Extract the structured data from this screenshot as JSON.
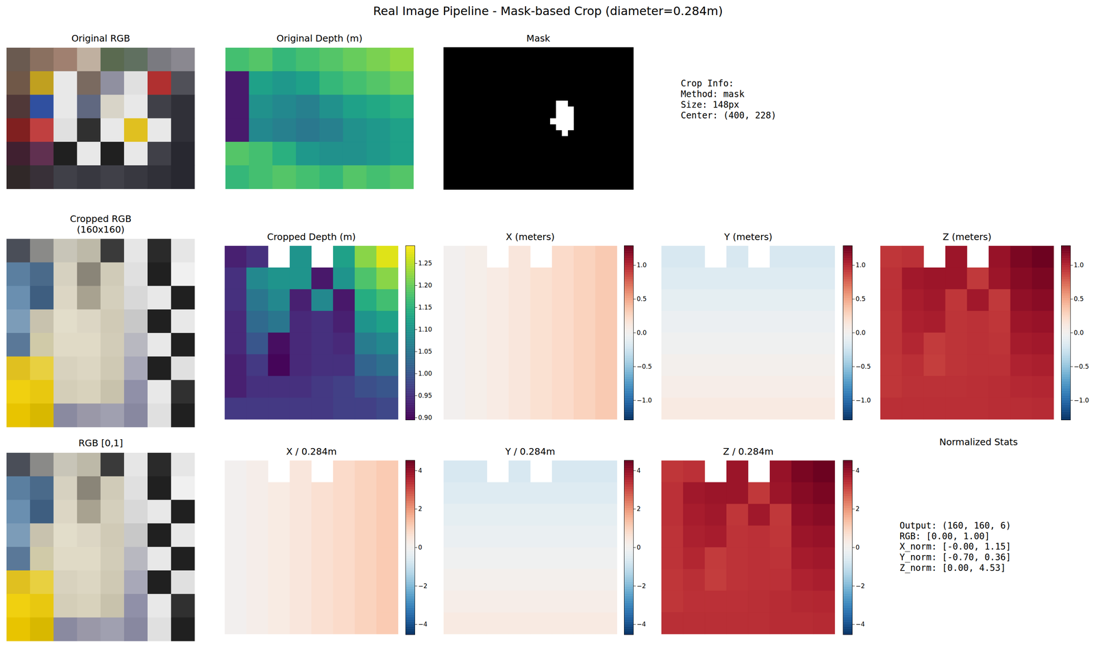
{
  "title": "Real Image Pipeline - Mask-based Crop (diameter=0.284m)",
  "chart_data": [
    {
      "type": "image",
      "title": "Original RGB",
      "pixels": [
        [
          "#6a5a50",
          "#8a7060",
          "#a08070",
          "#c0b0a0",
          "#5a6a50",
          "#607060",
          "#7a7a80",
          "#8a8890"
        ],
        [
          "#705848",
          "#c0a020",
          "#e8e8e8",
          "#7a6a60",
          "#9090a0",
          "#e0e0e0",
          "#b03030",
          "#505058"
        ],
        [
          "#503838",
          "#3050a0",
          "#e8e8e8",
          "#606880",
          "#d8d4c8",
          "#e8e8e8",
          "#404048",
          "#303038"
        ],
        [
          "#802020",
          "#c04040",
          "#e0e0e0",
          "#303030",
          "#e8e8e8",
          "#e0c020",
          "#e8e8e8",
          "#303038"
        ],
        [
          "#402030",
          "#603050",
          "#202020",
          "#e8e8e8",
          "#202020",
          "#e8e8e8",
          "#404048",
          "#282830"
        ],
        [
          "#302828",
          "#383038",
          "#404048",
          "#383840",
          "#404048",
          "#383840",
          "#303038",
          "#282830"
        ]
      ]
    },
    {
      "type": "heatmap",
      "title": "Original Depth (m)",
      "color": "viridis",
      "color_range": [
        0.5,
        2.0
      ],
      "cells": [
        [
          1.55,
          1.6,
          1.5,
          1.55,
          1.6,
          1.65,
          1.7,
          1.75
        ],
        [
          0.6,
          1.35,
          1.3,
          1.35,
          1.5,
          1.55,
          1.6,
          1.65
        ],
        [
          0.6,
          1.25,
          1.2,
          1.15,
          1.25,
          1.35,
          1.4,
          1.45
        ],
        [
          0.6,
          1.2,
          1.15,
          1.1,
          1.15,
          1.25,
          1.3,
          1.35
        ],
        [
          1.6,
          1.55,
          1.45,
          1.3,
          1.25,
          1.25,
          1.3,
          1.35
        ],
        [
          1.5,
          1.55,
          1.6,
          1.55,
          1.5,
          1.6,
          1.55,
          1.6
        ]
      ]
    },
    {
      "type": "mask",
      "title": "Mask",
      "rows": 24,
      "cols": 32,
      "white_cells": [
        [
          9,
          19
        ],
        [
          9,
          20
        ],
        [
          10,
          19
        ],
        [
          10,
          20
        ],
        [
          10,
          21
        ],
        [
          11,
          19
        ],
        [
          11,
          20
        ],
        [
          11,
          21
        ],
        [
          12,
          18
        ],
        [
          12,
          19
        ],
        [
          12,
          20
        ],
        [
          12,
          21
        ],
        [
          13,
          19
        ],
        [
          13,
          20
        ],
        [
          13,
          21
        ],
        [
          14,
          20
        ]
      ]
    },
    {
      "type": "image",
      "title": "Cropped RGB\n(160x160)",
      "pixels": [
        [
          "#4a4e58",
          "#8a8a88",
          "#c8c5b8",
          "#bdb9a8",
          "#3a3a3a",
          "#e6e6e6",
          "#2a2a2a",
          "#e6e6e6"
        ],
        [
          "#5b7fa0",
          "#4a6a8a",
          "#d6d1c0",
          "#8a8578",
          "#d0cbb8",
          "#e0e0e0",
          "#202020",
          "#f0f0f0"
        ],
        [
          "#6a8fb0",
          "#3e5e80",
          "#dcd6c4",
          "#a8a290",
          "#d4cfbc",
          "#d8d8d8",
          "#e8e8e8",
          "#202020"
        ],
        [
          "#7c9cb8",
          "#c8c2ae",
          "#e2ddca",
          "#dcd6c4",
          "#d0cab6",
          "#c8c8c8",
          "#202020",
          "#e8e8e8"
        ],
        [
          "#5a7898",
          "#d0caa8",
          "#e0dac6",
          "#e0dac6",
          "#d2ccb8",
          "#b8b8c0",
          "#e8e8e8",
          "#202020"
        ],
        [
          "#e0c020",
          "#e8d040",
          "#d8d2be",
          "#dcd6c2",
          "#cfc9b4",
          "#a8a8b8",
          "#202020",
          "#e0e0e0"
        ],
        [
          "#f0d010",
          "#e8c810",
          "#d4ceb8",
          "#d8d2bc",
          "#c8c2ac",
          "#9090a8",
          "#e8e8e8",
          "#303030"
        ],
        [
          "#e8c400",
          "#d8b800",
          "#8a8aa0",
          "#9a98a8",
          "#a0a0b0",
          "#8888a0",
          "#e0e0e0",
          "#202020"
        ]
      ]
    },
    {
      "type": "heatmap",
      "title": "Cropped Depth (m)",
      "color": "viridis",
      "colorbar": {
        "range": [
          0.895,
          1.29
        ],
        "ticks": [
          {
            "value": 0.9,
            "label": "0.90"
          },
          {
            "value": 0.95,
            "label": "0.95"
          },
          {
            "value": 1.0,
            "label": "1.00"
          },
          {
            "value": 1.05,
            "label": "1.05"
          },
          {
            "value": 1.1,
            "label": "1.10"
          },
          {
            "value": 1.15,
            "label": "1.15"
          },
          {
            "value": 1.2,
            "label": "1.20"
          },
          {
            "value": 1.25,
            "label": "1.25"
          }
        ]
      },
      "cells": [
        [
          0.93,
          0.95,
          null,
          1.1,
          null,
          1.12,
          1.22,
          1.27
        ],
        [
          0.95,
          1.08,
          1.1,
          1.1,
          0.92,
          1.1,
          1.18,
          1.22
        ],
        [
          0.95,
          1.05,
          1.08,
          0.93,
          1.08,
          0.92,
          1.14,
          1.17
        ],
        [
          0.94,
          1.03,
          1.05,
          0.94,
          0.95,
          0.93,
          1.1,
          1.12
        ],
        [
          0.94,
          1.0,
          0.91,
          0.94,
          0.95,
          0.94,
          1.06,
          1.08
        ],
        [
          0.93,
          0.96,
          0.9,
          0.94,
          0.95,
          0.95,
          1.02,
          1.04
        ],
        [
          0.93,
          0.95,
          0.95,
          0.95,
          0.96,
          0.97,
          0.99,
          1.0
        ],
        [
          0.96,
          0.96,
          0.96,
          0.96,
          0.96,
          0.97,
          0.97,
          0.98
        ]
      ]
    },
    {
      "type": "heatmap",
      "title": "X (meters)",
      "color": "RdBu_r",
      "colorbar": {
        "range": [
          -1.29,
          1.29
        ],
        "ticks": [
          {
            "value": -1,
            "label": "−1.0"
          },
          {
            "value": -0.5,
            "label": "−0.5"
          },
          {
            "value": 0,
            "label": "0.0"
          },
          {
            "value": 0.5,
            "label": "0.5"
          },
          {
            "value": 1,
            "label": "1.0"
          }
        ]
      },
      "cells": [
        [
          0.0,
          0.05,
          null,
          0.14,
          null,
          0.23,
          0.28,
          0.33
        ],
        [
          0.0,
          0.05,
          0.09,
          0.14,
          0.19,
          0.23,
          0.28,
          0.33
        ],
        [
          0.0,
          0.05,
          0.09,
          0.14,
          0.19,
          0.23,
          0.28,
          0.33
        ],
        [
          0.0,
          0.05,
          0.09,
          0.14,
          0.19,
          0.23,
          0.28,
          0.33
        ],
        [
          0.0,
          0.05,
          0.09,
          0.14,
          0.19,
          0.23,
          0.28,
          0.33
        ],
        [
          0.0,
          0.05,
          0.09,
          0.14,
          0.19,
          0.23,
          0.28,
          0.33
        ],
        [
          0.0,
          0.05,
          0.09,
          0.14,
          0.19,
          0.23,
          0.28,
          0.33
        ],
        [
          0.0,
          0.05,
          0.09,
          0.14,
          0.19,
          0.23,
          0.28,
          0.33
        ]
      ]
    },
    {
      "type": "heatmap",
      "title": "Y (meters)",
      "color": "RdBu_r",
      "colorbar": {
        "range": [
          -1.29,
          1.29
        ],
        "ticks": [
          {
            "value": -1,
            "label": "−1.0"
          },
          {
            "value": -0.5,
            "label": "−0.5"
          },
          {
            "value": 0,
            "label": "0.0"
          },
          {
            "value": 0.5,
            "label": "0.5"
          },
          {
            "value": 1,
            "label": "1.0"
          }
        ]
      },
      "cells": [
        [
          -0.2,
          -0.2,
          null,
          -0.2,
          null,
          -0.2,
          -0.2,
          -0.2
        ],
        [
          -0.16,
          -0.16,
          -0.16,
          -0.16,
          -0.16,
          -0.16,
          -0.16,
          -0.16
        ],
        [
          -0.11,
          -0.11,
          -0.11,
          -0.11,
          -0.11,
          -0.11,
          -0.11,
          -0.11
        ],
        [
          -0.07,
          -0.07,
          -0.07,
          -0.07,
          -0.07,
          -0.07,
          -0.07,
          -0.07
        ],
        [
          -0.03,
          -0.03,
          -0.03,
          -0.03,
          -0.03,
          -0.03,
          -0.03,
          -0.03
        ],
        [
          0.02,
          0.02,
          0.02,
          0.02,
          0.02,
          0.02,
          0.02,
          0.02
        ],
        [
          0.06,
          0.06,
          0.06,
          0.06,
          0.06,
          0.06,
          0.06,
          0.06
        ],
        [
          0.1,
          0.1,
          0.1,
          0.1,
          0.1,
          0.1,
          0.1,
          0.1
        ]
      ]
    },
    {
      "type": "heatmap",
      "title": "Z (meters)",
      "color": "RdBu_r",
      "colorbar": {
        "range": [
          -1.29,
          1.29
        ],
        "ticks": [
          {
            "value": -1,
            "label": "−1.0"
          },
          {
            "value": -0.5,
            "label": "−0.5"
          },
          {
            "value": 0,
            "label": "0.0"
          },
          {
            "value": 0.5,
            "label": "0.5"
          },
          {
            "value": 1,
            "label": "1.0"
          }
        ]
      },
      "cells": [
        [
          0.93,
          0.95,
          null,
          1.1,
          null,
          1.12,
          1.22,
          1.27
        ],
        [
          0.95,
          1.08,
          1.1,
          1.1,
          0.92,
          1.1,
          1.18,
          1.22
        ],
        [
          0.95,
          1.05,
          1.08,
          0.93,
          1.08,
          0.92,
          1.14,
          1.17
        ],
        [
          0.94,
          1.03,
          1.05,
          0.94,
          0.95,
          0.93,
          1.1,
          1.12
        ],
        [
          0.94,
          1.0,
          0.91,
          0.94,
          0.95,
          0.94,
          1.06,
          1.08
        ],
        [
          0.93,
          0.96,
          0.9,
          0.94,
          0.95,
          0.95,
          1.02,
          1.04
        ],
        [
          0.93,
          0.95,
          0.95,
          0.95,
          0.96,
          0.97,
          0.99,
          1.0
        ],
        [
          0.96,
          0.96,
          0.96,
          0.96,
          0.96,
          0.97,
          0.97,
          0.98
        ]
      ]
    },
    {
      "type": "image",
      "title": "RGB [0,1]",
      "pixels": [
        [
          "#4a4e58",
          "#8a8a88",
          "#c8c5b8",
          "#bdb9a8",
          "#3a3a3a",
          "#e6e6e6",
          "#2a2a2a",
          "#e6e6e6"
        ],
        [
          "#5b7fa0",
          "#4a6a8a",
          "#d6d1c0",
          "#8a8578",
          "#d0cbb8",
          "#e0e0e0",
          "#202020",
          "#f0f0f0"
        ],
        [
          "#6a8fb0",
          "#3e5e80",
          "#dcd6c4",
          "#a8a290",
          "#d4cfbc",
          "#d8d8d8",
          "#e8e8e8",
          "#202020"
        ],
        [
          "#7c9cb8",
          "#c8c2ae",
          "#e2ddca",
          "#dcd6c4",
          "#d0cab6",
          "#c8c8c8",
          "#202020",
          "#e8e8e8"
        ],
        [
          "#5a7898",
          "#d0caa8",
          "#e0dac6",
          "#e0dac6",
          "#d2ccb8",
          "#b8b8c0",
          "#e8e8e8",
          "#202020"
        ],
        [
          "#e0c020",
          "#e8d040",
          "#d8d2be",
          "#dcd6c2",
          "#cfc9b4",
          "#a8a8b8",
          "#202020",
          "#e0e0e0"
        ],
        [
          "#f0d010",
          "#e8c810",
          "#d4ceb8",
          "#d8d2bc",
          "#c8c2ac",
          "#9090a8",
          "#e8e8e8",
          "#303030"
        ],
        [
          "#e8c400",
          "#d8b800",
          "#8a8aa0",
          "#9a98a8",
          "#a0a0b0",
          "#8888a0",
          "#e0e0e0",
          "#202020"
        ]
      ]
    },
    {
      "type": "heatmap",
      "title": "X / 0.284m",
      "color": "RdBu_r",
      "colorbar": {
        "range": [
          -4.53,
          4.53
        ],
        "ticks": [
          {
            "value": -4,
            "label": "−4"
          },
          {
            "value": -2,
            "label": "−2"
          },
          0,
          2,
          4
        ]
      },
      "cells": [
        [
          0.0,
          0.18,
          null,
          0.49,
          null,
          0.81,
          0.99,
          1.15
        ],
        [
          0.0,
          0.18,
          0.32,
          0.49,
          0.67,
          0.81,
          0.99,
          1.15
        ],
        [
          0.0,
          0.18,
          0.32,
          0.49,
          0.67,
          0.81,
          0.99,
          1.15
        ],
        [
          0.0,
          0.18,
          0.32,
          0.49,
          0.67,
          0.81,
          0.99,
          1.15
        ],
        [
          0.0,
          0.18,
          0.32,
          0.49,
          0.67,
          0.81,
          0.99,
          1.15
        ],
        [
          0.0,
          0.18,
          0.32,
          0.49,
          0.67,
          0.81,
          0.99,
          1.15
        ],
        [
          0.0,
          0.18,
          0.32,
          0.49,
          0.67,
          0.81,
          0.99,
          1.15
        ],
        [
          0.0,
          0.18,
          0.32,
          0.49,
          0.67,
          0.81,
          0.99,
          1.15
        ]
      ]
    },
    {
      "type": "heatmap",
      "title": "Y / 0.284m",
      "color": "RdBu_r",
      "colorbar": {
        "range": [
          -4.53,
          4.53
        ],
        "ticks": [
          {
            "value": -4,
            "label": "−4"
          },
          {
            "value": -2,
            "label": "−2"
          },
          0,
          2,
          4
        ]
      },
      "cells": [
        [
          -0.7,
          -0.7,
          null,
          -0.7,
          null,
          -0.7,
          -0.7,
          -0.7
        ],
        [
          -0.56,
          -0.56,
          -0.56,
          -0.56,
          -0.56,
          -0.56,
          -0.56,
          -0.56
        ],
        [
          -0.39,
          -0.39,
          -0.39,
          -0.39,
          -0.39,
          -0.39,
          -0.39,
          -0.39
        ],
        [
          -0.25,
          -0.25,
          -0.25,
          -0.25,
          -0.25,
          -0.25,
          -0.25,
          -0.25
        ],
        [
          -0.11,
          -0.11,
          -0.11,
          -0.11,
          -0.11,
          -0.11,
          -0.11,
          -0.11
        ],
        [
          0.07,
          0.07,
          0.07,
          0.07,
          0.07,
          0.07,
          0.07,
          0.07
        ],
        [
          0.21,
          0.21,
          0.21,
          0.21,
          0.21,
          0.21,
          0.21,
          0.21
        ],
        [
          0.36,
          0.36,
          0.36,
          0.36,
          0.36,
          0.36,
          0.36,
          0.36
        ]
      ]
    },
    {
      "type": "heatmap",
      "title": "Z / 0.284m",
      "color": "RdBu_r",
      "colorbar": {
        "range": [
          -4.53,
          4.53
        ],
        "ticks": [
          {
            "value": -4,
            "label": "−4"
          },
          {
            "value": -2,
            "label": "−2"
          },
          0,
          2,
          4
        ]
      },
      "cells": [
        [
          3.27,
          3.35,
          null,
          3.87,
          null,
          3.94,
          4.3,
          4.47
        ],
        [
          3.35,
          3.8,
          3.87,
          3.87,
          3.24,
          3.87,
          4.15,
          4.3
        ],
        [
          3.35,
          3.7,
          3.8,
          3.27,
          3.8,
          3.24,
          4.01,
          4.12
        ],
        [
          3.31,
          3.63,
          3.7,
          3.31,
          3.35,
          3.27,
          3.87,
          3.94
        ],
        [
          3.31,
          3.52,
          3.2,
          3.31,
          3.35,
          3.31,
          3.73,
          3.8
        ],
        [
          3.27,
          3.38,
          3.17,
          3.31,
          3.35,
          3.35,
          3.59,
          3.66
        ],
        [
          3.27,
          3.35,
          3.35,
          3.35,
          3.38,
          3.42,
          3.49,
          3.52
        ],
        [
          3.38,
          3.38,
          3.38,
          3.38,
          3.38,
          3.42,
          3.42,
          3.45
        ]
      ]
    }
  ],
  "text_panels": [
    {
      "lines": [
        "Crop Info:",
        "Method: mask",
        "Size: 148px",
        "Center: (400, 228)"
      ]
    },
    {
      "title": "Normalized Stats",
      "lines": [
        "Output: (160, 160, 6)",
        "RGB: [0.00, 1.00]",
        "X_norm: [-0.00, 1.15]",
        "Y_norm: [-0.70, 0.36]",
        "Z_norm: [0.00, 4.53]"
      ]
    }
  ]
}
